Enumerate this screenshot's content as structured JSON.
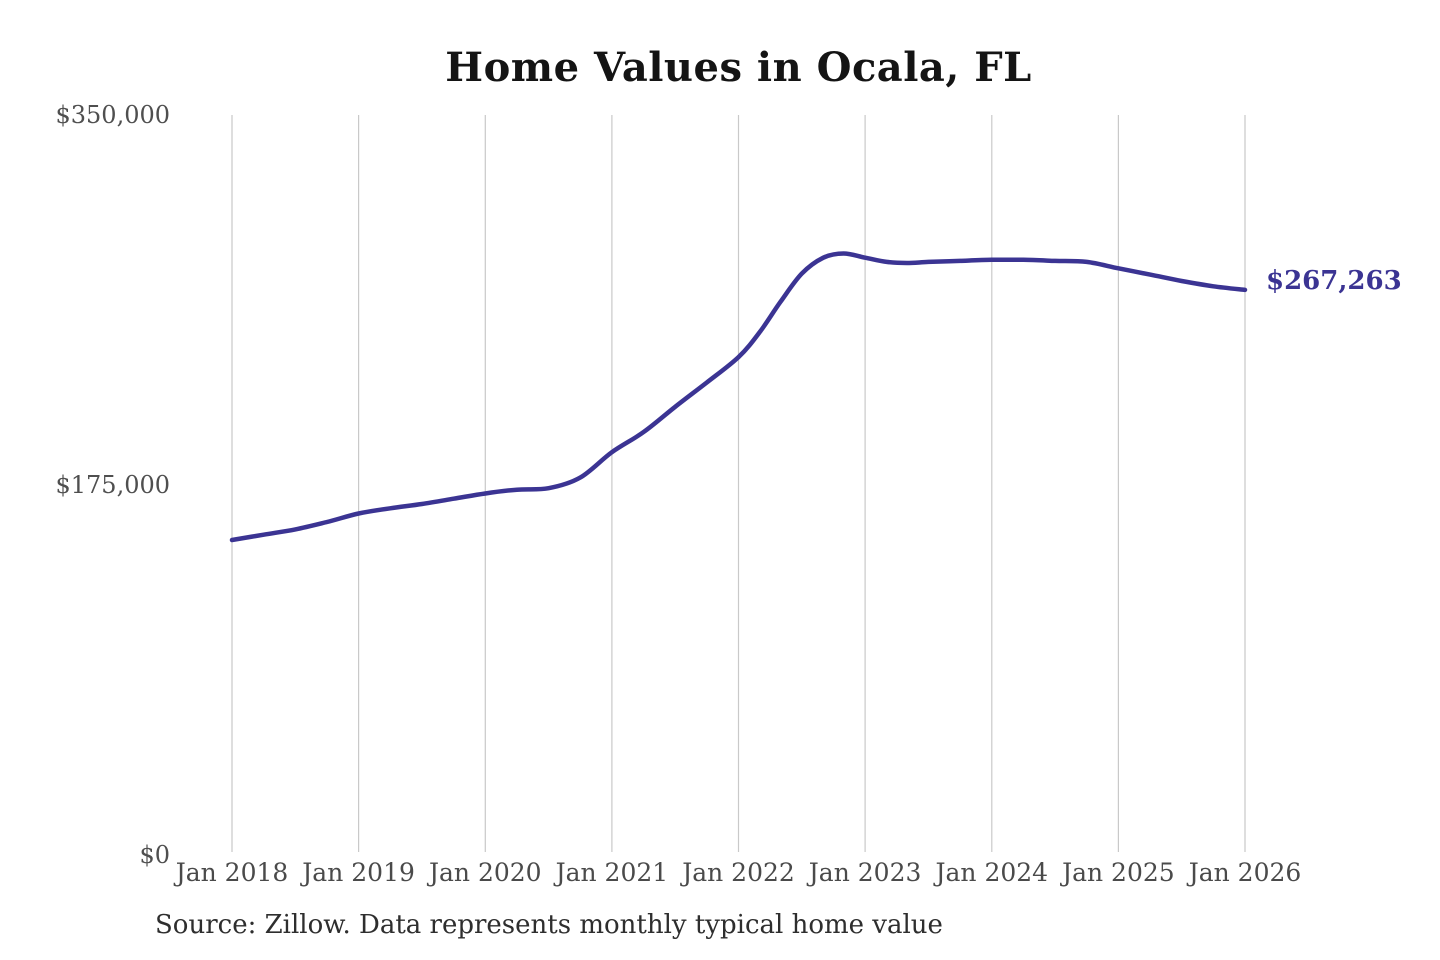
{
  "chart_data": {
    "type": "line",
    "title": "Home Values in Ocala, FL",
    "xlabel": "",
    "ylabel": "",
    "grid": "vertical-only",
    "legend": "none",
    "line_color": "#3b3493",
    "gridline_color": "#c9c9c9",
    "axis_label_color": "#4a4a4a",
    "annotation_color": "#3b3493",
    "ylim": [
      0,
      350000
    ],
    "xlim": [
      2018.0,
      2026.0
    ],
    "y_ticks": [
      {
        "value": 0,
        "label": "$0"
      },
      {
        "value": 175000,
        "label": "$175,000"
      },
      {
        "value": 350000,
        "label": "$350,000"
      }
    ],
    "x_ticks": [
      {
        "year": 2018,
        "label": "Jan 2018"
      },
      {
        "year": 2019,
        "label": "Jan 2019"
      },
      {
        "year": 2020,
        "label": "Jan 2020"
      },
      {
        "year": 2021,
        "label": "Jan 2021"
      },
      {
        "year": 2022,
        "label": "Jan 2022"
      },
      {
        "year": 2023,
        "label": "Jan 2023"
      },
      {
        "year": 2024,
        "label": "Jan 2024"
      },
      {
        "year": 2025,
        "label": "Jan 2025"
      },
      {
        "year": 2026,
        "label": "Jan 2026"
      }
    ],
    "series": [
      {
        "name": "Typical home value",
        "points": [
          [
            2018.0,
            149000
          ],
          [
            2018.25,
            151500
          ],
          [
            2018.5,
            154000
          ],
          [
            2018.75,
            157500
          ],
          [
            2019.0,
            161500
          ],
          [
            2019.25,
            164000
          ],
          [
            2019.5,
            166000
          ],
          [
            2019.75,
            168500
          ],
          [
            2020.0,
            171000
          ],
          [
            2020.25,
            172800
          ],
          [
            2020.5,
            173500
          ],
          [
            2020.75,
            178500
          ],
          [
            2021.0,
            190500
          ],
          [
            2021.25,
            200000
          ],
          [
            2021.5,
            212000
          ],
          [
            2021.75,
            223500
          ],
          [
            2022.0,
            235500
          ],
          [
            2022.17,
            247500
          ],
          [
            2022.33,
            261500
          ],
          [
            2022.5,
            275000
          ],
          [
            2022.67,
            282500
          ],
          [
            2022.83,
            284500
          ],
          [
            2023.0,
            282500
          ],
          [
            2023.17,
            280500
          ],
          [
            2023.33,
            280000
          ],
          [
            2023.5,
            280500
          ],
          [
            2023.75,
            281000
          ],
          [
            2024.0,
            281500
          ],
          [
            2024.25,
            281500
          ],
          [
            2024.5,
            281000
          ],
          [
            2024.75,
            280500
          ],
          [
            2025.0,
            277500
          ],
          [
            2025.25,
            274500
          ],
          [
            2025.5,
            271500
          ],
          [
            2025.75,
            269000
          ],
          [
            2026.0,
            267263
          ]
        ]
      }
    ],
    "end_label": "$267,263",
    "source_note": "Source: Zillow. Data represents monthly typical home value"
  }
}
